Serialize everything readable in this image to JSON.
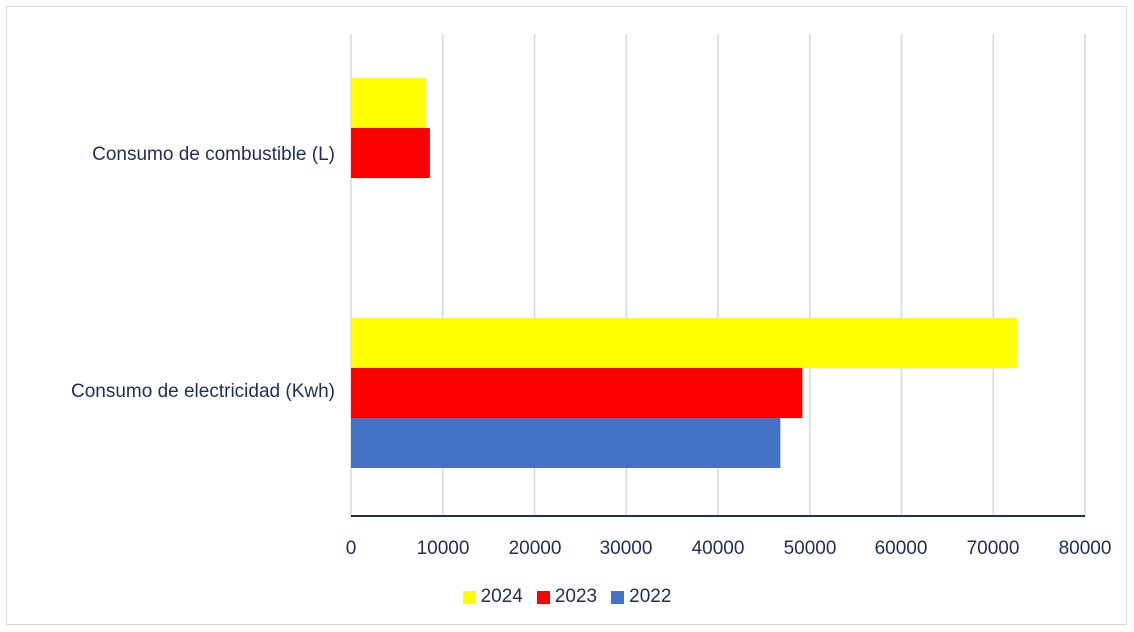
{
  "chart_data": {
    "type": "bar",
    "orientation": "horizontal",
    "categories": [
      "Consumo de combustible (L)",
      "Consumo de electricidad (Kwh)"
    ],
    "series": [
      {
        "name": "2024",
        "color": "#ffff00",
        "values": [
          8200,
          72600
        ]
      },
      {
        "name": "2023",
        "color": "#ff0000",
        "values": [
          8600,
          49200
        ]
      },
      {
        "name": "2022",
        "color": "#4472c4",
        "values": [
          0,
          46800
        ]
      }
    ],
    "xlim": [
      0,
      80000
    ],
    "xticks": [
      "0",
      "10000",
      "20000",
      "30000",
      "40000",
      "50000",
      "60000",
      "70000",
      "80000"
    ],
    "grid": true,
    "legend_position": "bottom"
  }
}
